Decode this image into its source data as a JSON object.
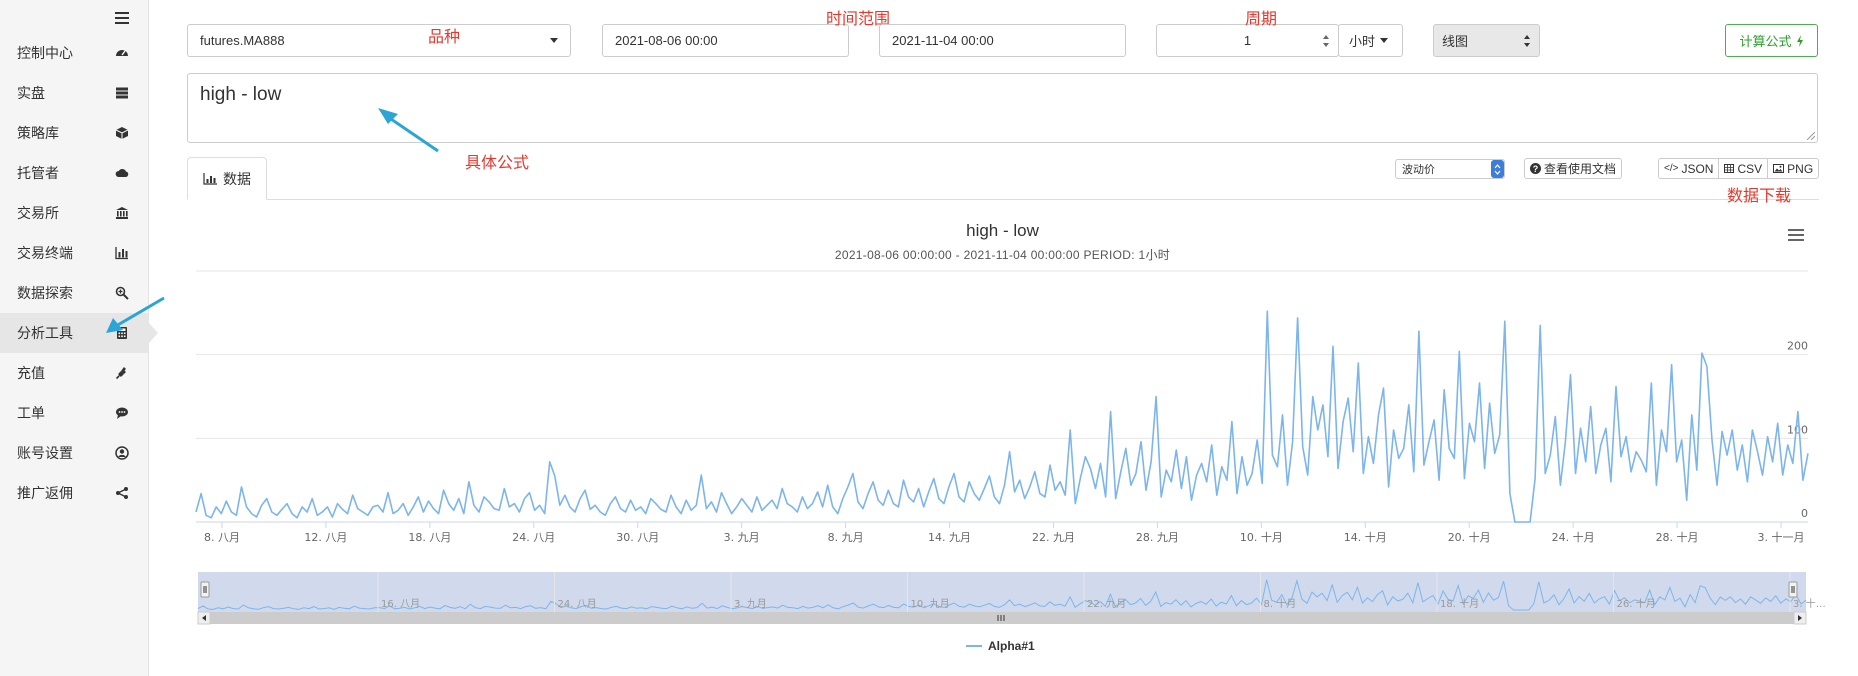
{
  "sidebar": {
    "items": [
      {
        "label": "控制中心",
        "icon": "dashboard-icon"
      },
      {
        "label": "实盘",
        "icon": "server-icon"
      },
      {
        "label": "策略库",
        "icon": "cube-icon"
      },
      {
        "label": "托管者",
        "icon": "cloud-icon"
      },
      {
        "label": "交易所",
        "icon": "bank-icon"
      },
      {
        "label": "交易终端",
        "icon": "bar-chart-icon"
      },
      {
        "label": "数据探索",
        "icon": "search-plus-icon"
      },
      {
        "label": "分析工具",
        "icon": "calculator-icon"
      },
      {
        "label": "充值",
        "icon": "plug-icon"
      },
      {
        "label": "工单",
        "icon": "comment-icon"
      },
      {
        "label": "账号设置",
        "icon": "user-circle-icon"
      },
      {
        "label": "推广返佣",
        "icon": "share-icon"
      }
    ]
  },
  "toolbar": {
    "symbol": "futures.MA888",
    "start_date": "2021-08-06 00:00",
    "end_date": "2021-11-04 00:00",
    "period_value": "1",
    "period_unit": "小时",
    "chart_style": "线图",
    "calc_button": "计算公式"
  },
  "annotations": {
    "symbol": "品种",
    "time_range": "时间范围",
    "period": "周期",
    "formula": "具体公式",
    "download": "数据下载"
  },
  "formula": "high - low",
  "tab_label": "数据",
  "price_select": "波动价",
  "docs_button": "查看使用文档",
  "downloads": [
    "JSON",
    "CSV",
    "PNG"
  ],
  "colors": {
    "series": "#7cb5ec",
    "annotation": "#e8372c",
    "accent": "#2ca02c",
    "arrow": "#2aa5d6"
  },
  "chart_data": {
    "type": "line",
    "title": "high - low",
    "subtitle": "2021-08-06 00:00:00 - 2021-11-04 00:00:00 PERIOD: 1小时",
    "series_name": "Alpha#1",
    "ylim": [
      0,
      300
    ],
    "yticks": [
      0,
      100,
      200
    ],
    "xticks": [
      "8. 八月",
      "12. 八月",
      "18. 八月",
      "24. 八月",
      "30. 八月",
      "3. 九月",
      "8. 九月",
      "14. 九月",
      "22. 九月",
      "28. 九月",
      "10. 十月",
      "14. 十月",
      "20. 十月",
      "24. 十月",
      "28. 十月",
      "3. 十一月"
    ],
    "navigator_ticks": [
      "16. 八月",
      "24. 八月",
      "3. 九月",
      "10. 九月",
      "22. 九月",
      "8. 十月",
      "18. 十月",
      "26. 十月",
      "3. 十…"
    ],
    "values": [
      12,
      34,
      8,
      5,
      18,
      10,
      25,
      12,
      8,
      42,
      18,
      10,
      6,
      20,
      28,
      12,
      8,
      15,
      22,
      10,
      5,
      18,
      12,
      28,
      8,
      12,
      18,
      6,
      22,
      15,
      10,
      32,
      16,
      12,
      8,
      18,
      20,
      12,
      35,
      10,
      14,
      22,
      8,
      18,
      30,
      12,
      25,
      16,
      10,
      38,
      22,
      14,
      28,
      10,
      48,
      20,
      12,
      30,
      24,
      16,
      14,
      40,
      18,
      22,
      12,
      28,
      35,
      14,
      20,
      10,
      72,
      55,
      20,
      32,
      18,
      12,
      28,
      38,
      15,
      20,
      12,
      8,
      22,
      30,
      16,
      12,
      26,
      14,
      18,
      10,
      28,
      22,
      15,
      12,
      32,
      18,
      10,
      26,
      14,
      20,
      56,
      16,
      24,
      12,
      35,
      22,
      10,
      18,
      28,
      20,
      12,
      30,
      14,
      20,
      26,
      16,
      40,
      22,
      18,
      12,
      30,
      16,
      22,
      36,
      18,
      44,
      18,
      10,
      28,
      42,
      58,
      24,
      16,
      34,
      48,
      26,
      20,
      38,
      22,
      18,
      50,
      30,
      24,
      40,
      18,
      36,
      52,
      28,
      22,
      42,
      58,
      30,
      24,
      48,
      34,
      26,
      40,
      55,
      30,
      22,
      44,
      84,
      36,
      50,
      28,
      42,
      60,
      34,
      30,
      68,
      38,
      48,
      32,
      110,
      22,
      52,
      78,
      64,
      40,
      70,
      30,
      132,
      28,
      60,
      88,
      44,
      58,
      96,
      38,
      72,
      150,
      30,
      62,
      48,
      86,
      40,
      78,
      26,
      56,
      70,
      48,
      92,
      32,
      66,
      50,
      120,
      34,
      78,
      44,
      58,
      98,
      46,
      252,
      80,
      66,
      128,
      44,
      96,
      244,
      90,
      56,
      150,
      110,
      140,
      78,
      210,
      64,
      120,
      148,
      84,
      190,
      58,
      102,
      70,
      128,
      160,
      42,
      110,
      76,
      88,
      140,
      60,
      228,
      68,
      96,
      122,
      50,
      158,
      88,
      76,
      204,
      52,
      118,
      96,
      166,
      64,
      142,
      82,
      104,
      240,
      34,
      0,
      0,
      0,
      0,
      52,
      235,
      58,
      80,
      126,
      44,
      96,
      176,
      58,
      112,
      72,
      138,
      58,
      92,
      112,
      48,
      162,
      78,
      102,
      60,
      84,
      74,
      60,
      166,
      44,
      110,
      84,
      188,
      72,
      98,
      26,
      128,
      62,
      202,
      186,
      98,
      44,
      108,
      80,
      110,
      62,
      92,
      48,
      110,
      84,
      56,
      102,
      72,
      118,
      56,
      92,
      70,
      132,
      50,
      82
    ],
    "navigator_range": [
      0.008,
      0.992
    ]
  }
}
